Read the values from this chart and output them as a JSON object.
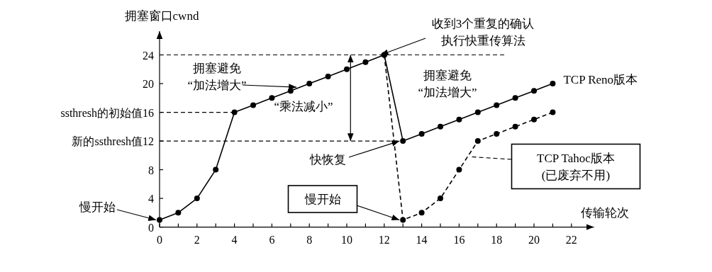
{
  "chart_data": {
    "type": "line",
    "xlabel": "传输轮次",
    "ylabel": "拥塞窗口cwnd",
    "xlim": [
      0,
      23.2
    ],
    "ylim": [
      0,
      27.3
    ],
    "xticks": [
      0,
      {
        "value": 1,
        "label": null
      },
      2,
      {
        "value": 3,
        "label": null
      },
      4,
      {
        "value": 5,
        "label": null
      },
      6,
      {
        "value": 7,
        "label": null
      },
      8,
      {
        "value": 9,
        "label": null
      },
      10,
      {
        "value": 11,
        "label": null
      },
      12,
      {
        "value": 13,
        "label": null
      },
      14,
      {
        "value": 15,
        "label": null
      },
      16,
      {
        "value": 17,
        "label": null
      },
      18,
      {
        "value": 19,
        "label": null
      },
      20,
      {
        "value": 21,
        "label": null
      },
      22
    ],
    "yticks": [
      0,
      4,
      8,
      {
        "value": 12,
        "label": "新的ssthresh值12"
      },
      {
        "value": 16,
        "label": "ssthresh的初始值16"
      },
      20,
      24
    ],
    "marker": "circle",
    "series": [
      {
        "name": "TCP Reno版本",
        "color": "#000000",
        "x": [
          0,
          1,
          2,
          3,
          4,
          5,
          6,
          7,
          8,
          9,
          10,
          11,
          12,
          13,
          14,
          15,
          16,
          17,
          18,
          19,
          20,
          21
        ],
        "values": [
          1,
          2,
          4,
          8,
          16,
          17,
          18,
          19,
          20,
          21,
          22,
          23,
          24,
          12,
          13,
          14,
          15,
          16,
          17,
          18,
          19,
          20
        ]
      },
      {
        "name": "TCP Tahoc版本(已废弃不用)",
        "color": "#000000",
        "line_style": "dashed",
        "x": [
          12,
          13,
          14,
          15,
          16,
          17,
          18,
          19,
          20,
          21
        ],
        "values": [
          24,
          1,
          2,
          4,
          8,
          12,
          13,
          14,
          15,
          16
        ]
      }
    ],
    "ref_lines": [
      {
        "axis": "y",
        "value": 24,
        "line_style": "dashed"
      },
      {
        "axis": "y",
        "value": 16,
        "line_style": "dashed"
      },
      {
        "axis": "y",
        "value": 12,
        "line_style": "dashed"
      }
    ],
    "annotations": [
      {
        "text": "慢开始",
        "x": 0,
        "y": 1
      },
      {
        "text": "拥塞避免“加法增大”",
        "x": 7.5,
        "y": 19.5
      },
      "“乘法减小”",
      {
        "text": "收到3个重复的确认执行快重传算法",
        "x": 12,
        "y": 24
      },
      "拥塞避免“加法增大”",
      {
        "text": "快恢复",
        "x": 13,
        "y": 12
      },
      "慢开始"
    ]
  }
}
